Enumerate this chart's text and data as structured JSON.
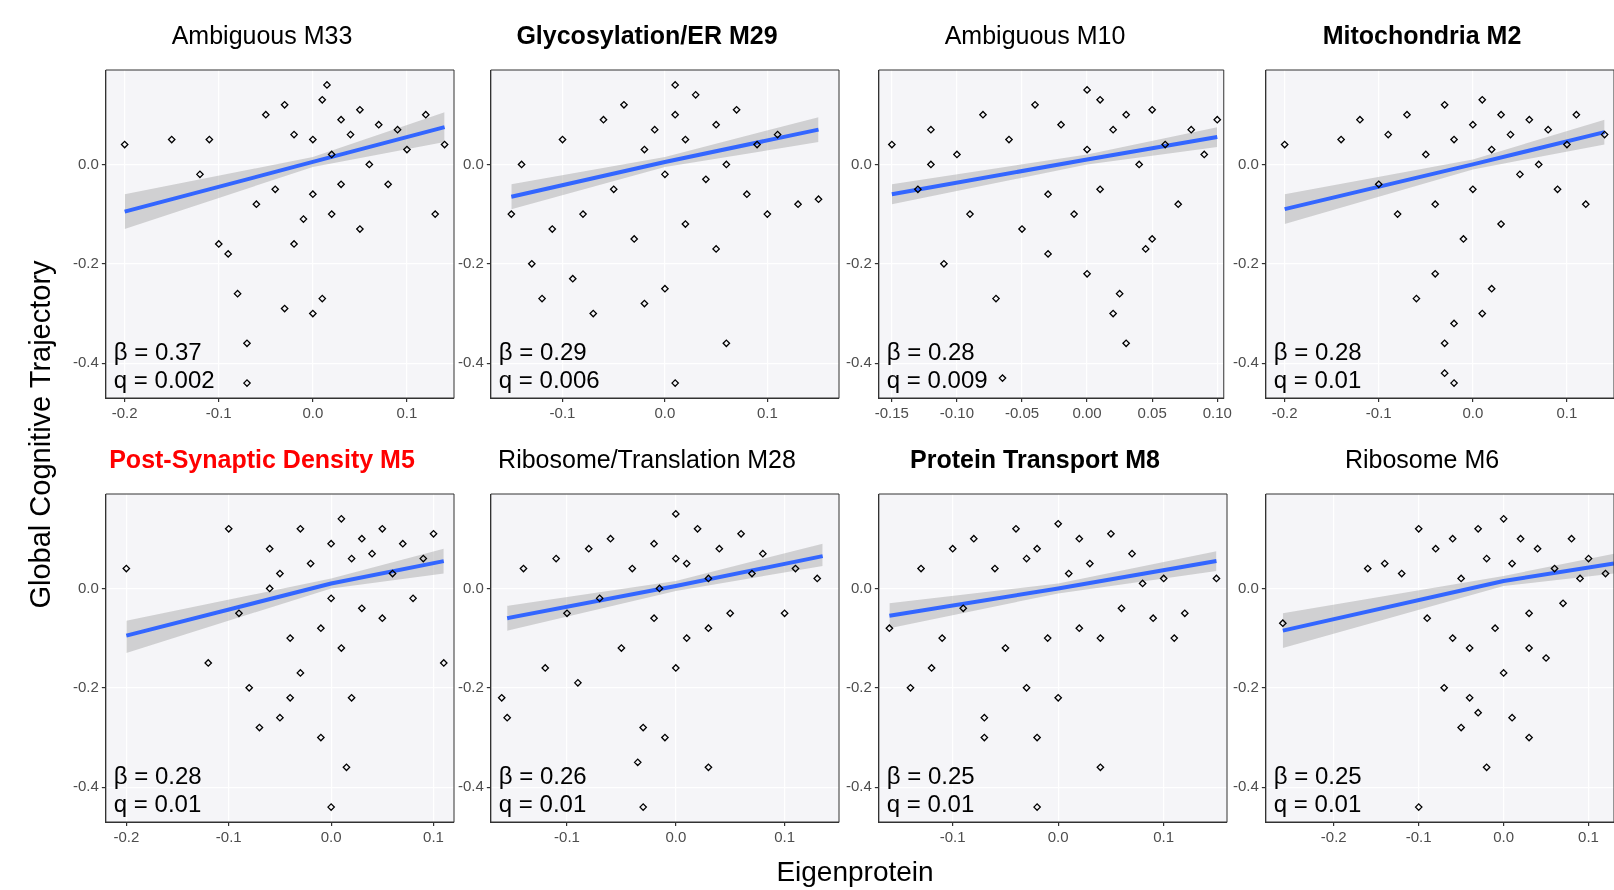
{
  "chart_data": [
    {
      "type": "scatter",
      "title": "Ambiguous M33",
      "ylabel": "Global Cognitive Trajectory",
      "annotations": [
        "β = 0.37",
        "q = 0.002"
      ],
      "xlim": [
        -0.22,
        0.15
      ],
      "xticks": [
        {
          "value": -0.2,
          "label": "-0.2"
        },
        {
          "value": -0.1,
          "label": "-0.1"
        },
        {
          "value": 0,
          "label": "0.0"
        },
        {
          "value": 0.1,
          "label": "0.1"
        }
      ],
      "ylim": [
        -0.47,
        0.19
      ],
      "yticks": [
        {
          "value": -0.4,
          "label": "-0.4"
        },
        {
          "value": -0.2,
          "label": "-0.2"
        },
        {
          "value": 0,
          "label": "0.0"
        }
      ],
      "grid": true,
      "series": [
        {
          "color": "#000000",
          "marker": "diamond",
          "x": [
            -0.2,
            -0.15,
            -0.12,
            -0.1,
            -0.08,
            -0.07,
            -0.07,
            -0.06,
            -0.05,
            -0.04,
            -0.03,
            -0.03,
            -0.02,
            -0.02,
            -0.01,
            0.0,
            0.0,
            0.0,
            0.01,
            0.01,
            0.02,
            0.02,
            0.03,
            0.03,
            0.04,
            0.05,
            0.05,
            0.06,
            0.07,
            0.08,
            0.09,
            0.1,
            0.12,
            0.13,
            0.14,
            -0.11,
            -0.09,
            0.015
          ],
          "values": [
            0.04,
            0.05,
            -0.02,
            -0.16,
            -0.26,
            -0.36,
            -0.44,
            -0.08,
            0.1,
            -0.05,
            0.12,
            -0.29,
            0.06,
            -0.16,
            -0.11,
            0.05,
            -0.06,
            -0.3,
            0.13,
            -0.27,
            0.02,
            -0.1,
            0.09,
            -0.04,
            0.06,
            -0.13,
            0.11,
            0.0,
            0.08,
            -0.04,
            0.07,
            0.03,
            0.1,
            -0.1,
            0.04,
            0.05,
            -0.18,
            0.16
          ]
        },
        {
          "type": "line",
          "color": "#3366ff",
          "x": [
            -0.2,
            0.0,
            0.14
          ],
          "values": [
            -0.095,
            0.005,
            0.075
          ],
          "lower": [
            -0.13,
            -0.005,
            0.045
          ],
          "upper": [
            -0.06,
            0.015,
            0.105
          ]
        }
      ]
    },
    {
      "type": "scatter",
      "title": "Glycosylation/ER M29",
      "annotations": [
        "β = 0.29",
        "q = 0.006"
      ],
      "xlim": [
        -0.17,
        0.17
      ],
      "xticks": [
        {
          "value": -0.1,
          "label": "-0.1"
        },
        {
          "value": 0,
          "label": "0.0"
        },
        {
          "value": 0.1,
          "label": "0.1"
        }
      ],
      "ylim": [
        -0.47,
        0.19
      ],
      "yticks": [
        {
          "value": -0.4,
          "label": "-0.4"
        },
        {
          "value": -0.2,
          "label": "-0.2"
        },
        {
          "value": 0,
          "label": "0.0"
        }
      ],
      "grid": true,
      "series": [
        {
          "color": "#000000",
          "marker": "diamond",
          "x": [
            -0.15,
            -0.14,
            -0.13,
            -0.12,
            -0.1,
            -0.09,
            -0.08,
            -0.07,
            -0.06,
            -0.05,
            -0.04,
            -0.03,
            -0.02,
            -0.02,
            -0.01,
            0.0,
            0.0,
            0.01,
            0.01,
            0.02,
            0.02,
            0.03,
            0.04,
            0.05,
            0.05,
            0.06,
            0.07,
            0.08,
            0.09,
            0.1,
            0.11,
            0.13,
            0.15,
            -0.11,
            0.06,
            0.01
          ],
          "values": [
            -0.1,
            0.0,
            -0.2,
            -0.27,
            0.05,
            -0.23,
            -0.1,
            -0.3,
            0.09,
            -0.05,
            0.12,
            -0.15,
            0.03,
            -0.28,
            0.07,
            -0.02,
            -0.25,
            0.1,
            -0.44,
            0.05,
            -0.12,
            0.14,
            -0.03,
            0.08,
            -0.17,
            0.0,
            0.11,
            -0.06,
            0.04,
            -0.1,
            0.06,
            -0.08,
            -0.07,
            -0.13,
            -0.36,
            0.16
          ]
        },
        {
          "type": "line",
          "color": "#3366ff",
          "x": [
            -0.15,
            0.0,
            0.15
          ],
          "values": [
            -0.065,
            0.005,
            0.07
          ],
          "lower": [
            -0.09,
            -0.005,
            0.045
          ],
          "upper": [
            -0.04,
            0.015,
            0.095
          ]
        }
      ]
    },
    {
      "type": "scatter",
      "title": "Ambiguous M10",
      "annotations": [
        "β = 0.28",
        "q = 0.009"
      ],
      "xlim": [
        -0.16,
        0.105
      ],
      "xticks": [
        {
          "value": -0.15,
          "label": "-0.15"
        },
        {
          "value": -0.1,
          "label": "-0.10"
        },
        {
          "value": -0.05,
          "label": "-0.05"
        },
        {
          "value": 0,
          "label": "0.00"
        },
        {
          "value": 0.05,
          "label": "0.05"
        },
        {
          "value": 0.1,
          "label": "0.10"
        }
      ],
      "ylim": [
        -0.47,
        0.19
      ],
      "yticks": [
        {
          "value": -0.4,
          "label": "-0.4"
        },
        {
          "value": -0.2,
          "label": "-0.2"
        },
        {
          "value": 0,
          "label": "0.0"
        }
      ],
      "grid": true,
      "series": [
        {
          "color": "#000000",
          "marker": "diamond",
          "x": [
            -0.15,
            -0.13,
            -0.12,
            -0.11,
            -0.1,
            -0.09,
            -0.08,
            -0.07,
            -0.065,
            -0.06,
            -0.05,
            -0.04,
            -0.03,
            -0.03,
            -0.02,
            -0.01,
            0.0,
            0.0,
            0.01,
            0.01,
            0.02,
            0.02,
            0.025,
            0.03,
            0.03,
            0.04,
            0.05,
            0.05,
            0.06,
            0.07,
            0.08,
            0.09,
            0.1,
            -0.12,
            0.0,
            0.045
          ],
          "values": [
            0.04,
            -0.05,
            0.07,
            -0.2,
            0.02,
            -0.1,
            0.1,
            -0.27,
            -0.43,
            0.05,
            -0.13,
            0.12,
            -0.06,
            -0.18,
            0.08,
            -0.1,
            0.03,
            -0.22,
            0.13,
            -0.05,
            0.07,
            -0.3,
            -0.26,
            0.1,
            -0.36,
            0.0,
            0.11,
            -0.15,
            0.04,
            -0.08,
            0.07,
            0.02,
            0.09,
            0.0,
            0.15,
            -0.17
          ]
        },
        {
          "type": "line",
          "color": "#3366ff",
          "x": [
            -0.15,
            0.0,
            0.1
          ],
          "values": [
            -0.06,
            0.01,
            0.055
          ],
          "lower": [
            -0.08,
            0.0,
            0.035
          ],
          "upper": [
            -0.04,
            0.02,
            0.075
          ]
        }
      ]
    },
    {
      "type": "scatter",
      "title": "Mitochondria M2",
      "annotations": [
        "β = 0.28",
        "q = 0.01"
      ],
      "xlim": [
        -0.22,
        0.15
      ],
      "xticks": [
        {
          "value": -0.2,
          "label": "-0.2"
        },
        {
          "value": -0.1,
          "label": "-0.1"
        },
        {
          "value": 0,
          "label": "0.0"
        },
        {
          "value": 0.1,
          "label": "0.1"
        }
      ],
      "ylim": [
        -0.47,
        0.19
      ],
      "yticks": [
        {
          "value": -0.4,
          "label": "-0.4"
        },
        {
          "value": -0.2,
          "label": "-0.2"
        },
        {
          "value": 0,
          "label": "0.0"
        }
      ],
      "grid": true,
      "series": [
        {
          "color": "#000000",
          "marker": "diamond",
          "x": [
            -0.2,
            -0.14,
            -0.12,
            -0.1,
            -0.09,
            -0.08,
            -0.07,
            -0.06,
            -0.05,
            -0.04,
            -0.04,
            -0.03,
            -0.03,
            -0.02,
            -0.02,
            -0.01,
            0.0,
            0.0,
            0.01,
            0.01,
            0.02,
            0.03,
            0.03,
            0.04,
            0.05,
            0.06,
            0.07,
            0.08,
            0.09,
            0.1,
            0.11,
            0.12,
            0.14,
            -0.03,
            -0.02,
            0.02
          ],
          "values": [
            0.04,
            0.05,
            0.09,
            -0.04,
            0.06,
            -0.1,
            0.1,
            -0.27,
            0.02,
            -0.08,
            -0.22,
            0.12,
            -0.36,
            0.05,
            -0.44,
            -0.15,
            0.08,
            -0.05,
            0.13,
            -0.3,
            0.03,
            0.1,
            -0.12,
            0.06,
            -0.02,
            0.09,
            0.0,
            0.07,
            -0.05,
            0.04,
            0.1,
            -0.08,
            0.06,
            -0.42,
            -0.32,
            -0.25
          ]
        },
        {
          "type": "line",
          "color": "#3366ff",
          "x": [
            -0.2,
            0.0,
            0.14
          ],
          "values": [
            -0.09,
            0.0,
            0.065
          ],
          "lower": [
            -0.12,
            -0.01,
            0.04
          ],
          "upper": [
            -0.06,
            0.01,
            0.09
          ]
        }
      ]
    },
    {
      "type": "scatter",
      "title": "Post-Synaptic Density M5",
      "annotations": [
        "β = 0.28",
        "q = 0.01"
      ],
      "xlim": [
        -0.22,
        0.12
      ],
      "xticks": [
        {
          "value": -0.2,
          "label": "-0.2"
        },
        {
          "value": -0.1,
          "label": "-0.1"
        },
        {
          "value": 0,
          "label": "0.0"
        },
        {
          "value": 0.1,
          "label": "0.1"
        }
      ],
      "ylim": [
        -0.47,
        0.19
      ],
      "yticks": [
        {
          "value": -0.4,
          "label": "-0.4"
        },
        {
          "value": -0.2,
          "label": "-0.2"
        },
        {
          "value": 0,
          "label": "0.0"
        }
      ],
      "grid": true,
      "series": [
        {
          "color": "#000000",
          "marker": "diamond",
          "x": [
            -0.2,
            -0.12,
            -0.1,
            -0.09,
            -0.08,
            -0.07,
            -0.06,
            -0.05,
            -0.05,
            -0.04,
            -0.03,
            -0.03,
            -0.02,
            -0.01,
            -0.01,
            0.0,
            0.0,
            0.01,
            0.01,
            0.02,
            0.02,
            0.03,
            0.03,
            0.04,
            0.05,
            0.05,
            0.06,
            0.07,
            0.08,
            0.09,
            0.1,
            0.11,
            -0.04,
            0.0,
            0.015,
            -0.06
          ],
          "values": [
            0.04,
            -0.15,
            0.12,
            -0.05,
            -0.2,
            -0.28,
            0.08,
            -0.26,
            0.03,
            -0.1,
            0.12,
            -0.17,
            0.05,
            -0.08,
            -0.3,
            0.09,
            -0.44,
            0.14,
            -0.12,
            0.06,
            -0.22,
            0.1,
            -0.04,
            0.07,
            0.12,
            -0.06,
            0.03,
            0.09,
            -0.02,
            0.06,
            0.11,
            -0.15,
            -0.22,
            -0.02,
            -0.36,
            0.0
          ]
        },
        {
          "type": "line",
          "color": "#3366ff",
          "x": [
            -0.2,
            0.0,
            0.11
          ],
          "values": [
            -0.095,
            0.01,
            0.055
          ],
          "lower": [
            -0.13,
            0.0,
            0.03
          ],
          "upper": [
            -0.065,
            0.02,
            0.08
          ]
        }
      ]
    },
    {
      "type": "scatter",
      "title": "Ribosome/Translation M28",
      "xlabel": "Eigenprotein",
      "annotations": [
        "β = 0.26",
        "q = 0.01"
      ],
      "xlim": [
        -0.17,
        0.15
      ],
      "xticks": [
        {
          "value": -0.1,
          "label": "-0.1"
        },
        {
          "value": 0,
          "label": "0.0"
        },
        {
          "value": 0.1,
          "label": "0.1"
        }
      ],
      "ylim": [
        -0.47,
        0.19
      ],
      "yticks": [
        {
          "value": -0.4,
          "label": "-0.4"
        },
        {
          "value": -0.2,
          "label": "-0.2"
        },
        {
          "value": 0,
          "label": "0.0"
        }
      ],
      "grid": true,
      "series": [
        {
          "color": "#000000",
          "marker": "diamond",
          "x": [
            -0.16,
            -0.155,
            -0.14,
            -0.12,
            -0.11,
            -0.1,
            -0.09,
            -0.08,
            -0.07,
            -0.06,
            -0.05,
            -0.04,
            -0.03,
            -0.03,
            -0.02,
            -0.02,
            -0.01,
            0.0,
            0.0,
            0.01,
            0.01,
            0.02,
            0.03,
            0.03,
            0.04,
            0.05,
            0.06,
            0.07,
            0.08,
            0.1,
            0.11,
            0.13,
            -0.035,
            -0.015,
            0.03,
            0.0
          ],
          "values": [
            -0.22,
            -0.26,
            0.04,
            -0.16,
            0.06,
            -0.05,
            -0.19,
            0.08,
            -0.02,
            0.1,
            -0.12,
            0.04,
            -0.28,
            -0.44,
            0.09,
            -0.06,
            -0.3,
            0.15,
            -0.16,
            0.05,
            -0.1,
            0.12,
            0.02,
            -0.36,
            0.08,
            -0.05,
            0.11,
            0.03,
            0.07,
            -0.05,
            0.04,
            0.02,
            -0.35,
            0.0,
            -0.08,
            0.06
          ]
        },
        {
          "type": "line",
          "color": "#3366ff",
          "x": [
            -0.155,
            0.0,
            0.135
          ],
          "values": [
            -0.06,
            0.005,
            0.065
          ],
          "lower": [
            -0.085,
            -0.005,
            0.045
          ],
          "upper": [
            -0.035,
            0.015,
            0.09
          ]
        }
      ]
    },
    {
      "type": "scatter",
      "title": "Protein Transport M8",
      "annotations": [
        "β = 0.25",
        "q = 0.01"
      ],
      "xlim": [
        -0.17,
        0.16
      ],
      "xticks": [
        {
          "value": -0.1,
          "label": "-0.1"
        },
        {
          "value": 0,
          "label": "0.0"
        },
        {
          "value": 0.1,
          "label": "0.1"
        }
      ],
      "ylim": [
        -0.47,
        0.19
      ],
      "yticks": [
        {
          "value": -0.4,
          "label": "-0.4"
        },
        {
          "value": -0.2,
          "label": "-0.2"
        },
        {
          "value": 0,
          "label": "0.0"
        }
      ],
      "grid": true,
      "series": [
        {
          "color": "#000000",
          "marker": "diamond",
          "x": [
            -0.16,
            -0.14,
            -0.13,
            -0.12,
            -0.11,
            -0.1,
            -0.09,
            -0.08,
            -0.07,
            -0.06,
            -0.05,
            -0.04,
            -0.03,
            -0.03,
            -0.02,
            -0.02,
            -0.01,
            0.0,
            0.0,
            0.01,
            0.02,
            0.02,
            0.03,
            0.04,
            0.05,
            0.06,
            0.07,
            0.08,
            0.09,
            0.1,
            0.11,
            0.12,
            0.15,
            -0.07,
            -0.02,
            0.04
          ],
          "values": [
            -0.08,
            -0.2,
            0.04,
            -0.16,
            -0.1,
            0.08,
            -0.04,
            0.1,
            -0.26,
            0.04,
            -0.12,
            0.12,
            0.06,
            -0.2,
            -0.3,
            0.08,
            -0.1,
            0.13,
            -0.22,
            0.03,
            0.1,
            -0.08,
            0.05,
            -0.1,
            0.11,
            -0.04,
            0.07,
            0.01,
            -0.06,
            0.02,
            -0.1,
            -0.05,
            0.02,
            -0.3,
            -0.44,
            -0.36
          ]
        },
        {
          "type": "line",
          "color": "#3366ff",
          "x": [
            -0.16,
            0.0,
            0.15
          ],
          "values": [
            -0.055,
            0.0,
            0.055
          ],
          "lower": [
            -0.08,
            -0.01,
            0.035
          ],
          "upper": [
            -0.03,
            0.01,
            0.075
          ]
        }
      ]
    },
    {
      "type": "scatter",
      "title": "Ribosome M6",
      "annotations": [
        "β = 0.25",
        "q = 0.01"
      ],
      "xlim": [
        -0.28,
        0.13
      ],
      "xticks": [
        {
          "value": -0.2,
          "label": "-0.2"
        },
        {
          "value": -0.1,
          "label": "-0.1"
        },
        {
          "value": 0,
          "label": "0.0"
        },
        {
          "value": 0.1,
          "label": "0.1"
        }
      ],
      "ylim": [
        -0.47,
        0.19
      ],
      "yticks": [
        {
          "value": -0.4,
          "label": "-0.4"
        },
        {
          "value": -0.2,
          "label": "-0.2"
        },
        {
          "value": 0,
          "label": "0.0"
        }
      ],
      "grid": true,
      "series": [
        {
          "color": "#000000",
          "marker": "diamond",
          "x": [
            -0.26,
            -0.16,
            -0.14,
            -0.12,
            -0.1,
            -0.09,
            -0.08,
            -0.07,
            -0.06,
            -0.05,
            -0.05,
            -0.04,
            -0.03,
            -0.03,
            -0.02,
            -0.02,
            -0.01,
            0.0,
            0.0,
            0.01,
            0.01,
            0.02,
            0.03,
            0.03,
            0.04,
            0.05,
            0.06,
            0.07,
            0.08,
            0.09,
            0.1,
            0.12,
            -0.1,
            -0.04,
            0.03,
            -0.06
          ],
          "values": [
            -0.07,
            0.04,
            0.05,
            0.03,
            0.12,
            -0.06,
            0.08,
            -0.2,
            0.1,
            -0.28,
            0.02,
            -0.12,
            0.12,
            -0.25,
            0.06,
            -0.36,
            -0.08,
            0.14,
            -0.17,
            0.05,
            -0.26,
            0.1,
            -0.05,
            -0.3,
            0.08,
            -0.14,
            0.04,
            -0.03,
            0.1,
            0.02,
            0.06,
            0.03,
            -0.44,
            -0.22,
            -0.12,
            -0.1
          ]
        },
        {
          "type": "line",
          "color": "#3366ff",
          "x": [
            -0.26,
            0.0,
            0.13
          ],
          "values": [
            -0.085,
            0.015,
            0.05
          ],
          "lower": [
            -0.12,
            0.005,
            0.03
          ],
          "upper": [
            -0.05,
            0.025,
            0.07
          ]
        }
      ]
    }
  ]
}
